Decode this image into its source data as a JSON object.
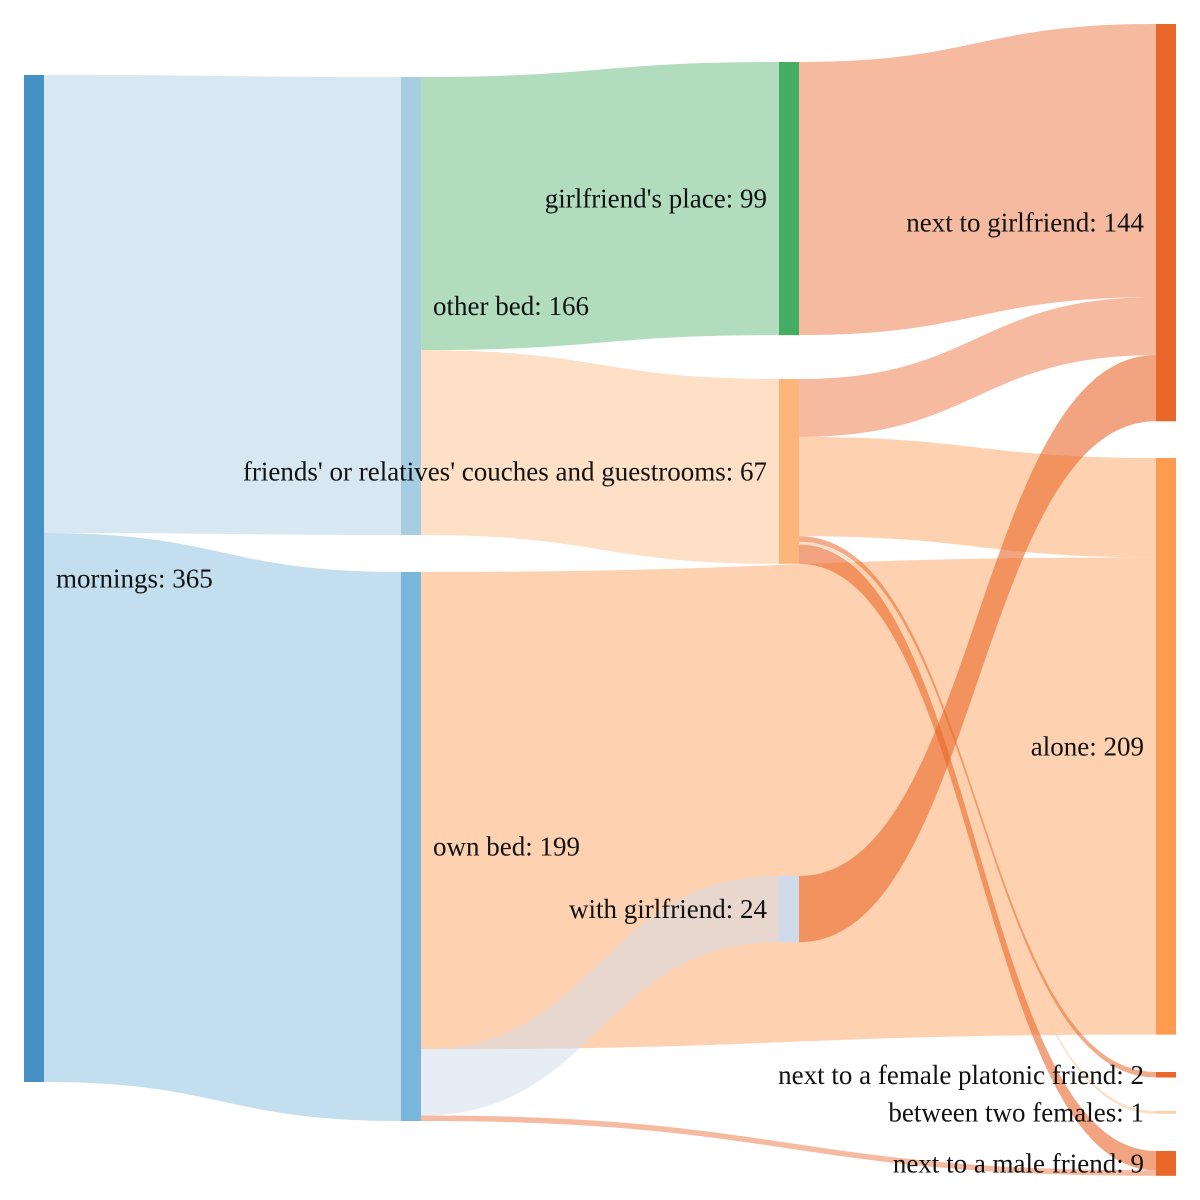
{
  "chart_data": {
    "type": "sankey",
    "nodes": [
      {
        "id": "mornings",
        "label": "mornings: 365",
        "value": 365,
        "column": 0,
        "color": "#4590c5"
      },
      {
        "id": "other_bed",
        "label": "other bed: 166",
        "value": 166,
        "column": 1,
        "color": "#a6cde2"
      },
      {
        "id": "own_bed",
        "label": "own bed: 199",
        "value": 199,
        "column": 1,
        "color": "#7ab6db"
      },
      {
        "id": "gf_place",
        "label": "girlfriend's place: 99",
        "value": 99,
        "column": 2,
        "color": "#44ad63"
      },
      {
        "id": "couches",
        "label": "friends' or relatives' couches and guestrooms: 67",
        "value": 67,
        "column": 2,
        "color": "#fdb57a"
      },
      {
        "id": "with_gf",
        "label": "with girlfriend: 24",
        "value": 24,
        "column": 2,
        "color": "#cfdbec"
      },
      {
        "id": "next_gf",
        "label": "next to girlfriend: 144",
        "value": 144,
        "column": 3,
        "color": "#e8672a"
      },
      {
        "id": "alone",
        "label": "alone: 209",
        "value": 209,
        "column": 3,
        "color": "#fd9b4f"
      },
      {
        "id": "female_friend",
        "label": "next to a female platonic friend: 2",
        "value": 2,
        "column": 3,
        "color": "#e8672a"
      },
      {
        "id": "two_females",
        "label": "between two females: 1",
        "value": 1,
        "column": 3,
        "color": "#fdd0a8"
      },
      {
        "id": "male_friend",
        "label": "next to a male friend: 9",
        "value": 9,
        "column": 3,
        "color": "#e8672a"
      }
    ],
    "links": [
      {
        "source": "mornings",
        "target": "other_bed",
        "value": 166,
        "color": "#a6cde2",
        "opacity": 0.45
      },
      {
        "source": "mornings",
        "target": "own_bed",
        "value": 199,
        "color": "#7ab6db",
        "opacity": 0.45
      },
      {
        "source": "other_bed",
        "target": "gf_place",
        "value": 99,
        "color": "#44ad63",
        "opacity": 0.42
      },
      {
        "source": "other_bed",
        "target": "couches",
        "value": 67,
        "color": "#fdb57a",
        "opacity": 0.42
      },
      {
        "source": "own_bed",
        "target": "alone",
        "value": 173,
        "color": "#fd9b4f",
        "opacity": 0.45
      },
      {
        "source": "own_bed",
        "target": "with_gf",
        "value": 24,
        "color": "#cfdbec",
        "opacity": 0.5
      },
      {
        "source": "own_bed",
        "target": "male_friend",
        "value": 2,
        "color": "#e8672a",
        "opacity": 0.45
      },
      {
        "source": "gf_place",
        "target": "next_gf",
        "value": 99,
        "color": "#e8672a",
        "opacity": 0.45
      },
      {
        "source": "couches",
        "target": "next_gf",
        "value": 21,
        "color": "#e8672a",
        "opacity": 0.45
      },
      {
        "source": "couches",
        "target": "alone",
        "value": 36,
        "color": "#fd9b4f",
        "opacity": 0.45
      },
      {
        "source": "couches",
        "target": "female_friend",
        "value": 2,
        "color": "#e8672a",
        "opacity": 0.55
      },
      {
        "source": "couches",
        "target": "two_females",
        "value": 1,
        "color": "#fdd0a8",
        "opacity": 0.7
      },
      {
        "source": "couches",
        "target": "male_friend",
        "value": 7,
        "color": "#e8672a",
        "opacity": 0.6
      },
      {
        "source": "with_gf",
        "target": "next_gf",
        "value": 24,
        "color": "#e8672a",
        "opacity": 0.6
      }
    ]
  }
}
